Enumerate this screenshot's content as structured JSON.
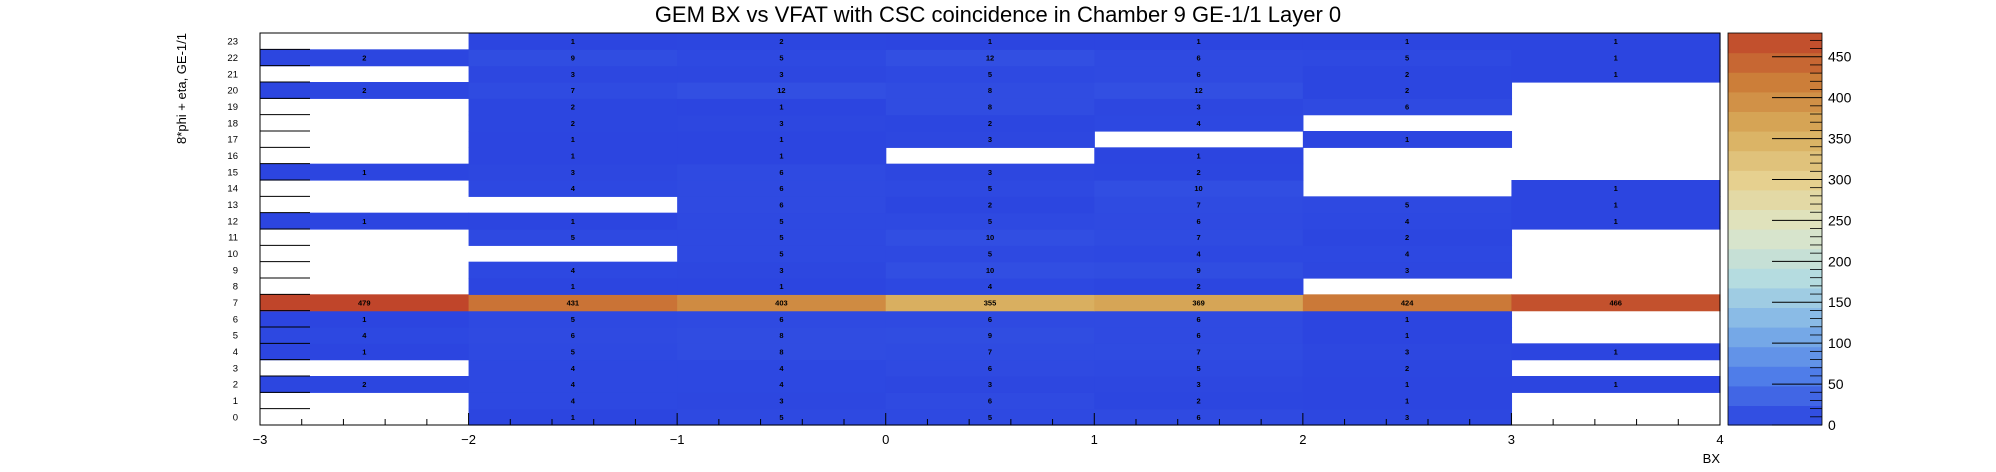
{
  "chart_data": {
    "type": "heatmap",
    "title": "GEM BX vs VFAT with CSC coincidence in Chamber 9 GE-1/1 Layer 0",
    "xlabel": "BX",
    "ylabel": "8*phi + eta, GE-1/1",
    "xlim": [
      -3,
      4
    ],
    "ylim": [
      0,
      24
    ],
    "x_ticks": [
      "−3",
      "−2",
      "−1",
      "0",
      "1",
      "2",
      "3",
      "4"
    ],
    "x_bins": [
      [
        -3,
        -2
      ],
      [
        -2,
        -1
      ],
      [
        -1,
        0
      ],
      [
        0,
        1
      ],
      [
        1,
        2
      ],
      [
        2,
        3
      ],
      [
        3,
        4
      ]
    ],
    "y_categories": [
      "0",
      "1",
      "2",
      "3",
      "4",
      "5",
      "6",
      "7",
      "8",
      "9",
      "10",
      "11",
      "12",
      "13",
      "14",
      "15",
      "16",
      "17",
      "18",
      "19",
      "20",
      "21",
      "22",
      "23"
    ],
    "zlim": [
      0,
      479
    ],
    "z_ticks": [
      "0",
      "50",
      "100",
      "150",
      "200",
      "250",
      "300",
      "350",
      "400",
      "450"
    ],
    "empty_color": "#ffffff",
    "palette_stops": [
      "#2b44e0",
      "#4f7de9",
      "#7fb3e7",
      "#b5dce0",
      "#dfe6c7",
      "#e6d08f",
      "#d8ad5c",
      "#cc7e39",
      "#c0452a"
    ],
    "cells": [
      [
        0,
        [
          null,
          1,
          5,
          5,
          6,
          3,
          null
        ]
      ],
      [
        1,
        [
          null,
          4,
          3,
          6,
          2,
          1,
          null
        ]
      ],
      [
        2,
        [
          2,
          4,
          4,
          3,
          3,
          1,
          1
        ]
      ],
      [
        3,
        [
          null,
          4,
          4,
          6,
          5,
          2,
          null
        ]
      ],
      [
        4,
        [
          1,
          5,
          8,
          7,
          7,
          3,
          1
        ]
      ],
      [
        5,
        [
          4,
          6,
          8,
          9,
          6,
          1,
          null
        ]
      ],
      [
        6,
        [
          1,
          5,
          6,
          6,
          6,
          1,
          null
        ]
      ],
      [
        7,
        [
          479,
          431,
          403,
          355,
          369,
          424,
          466
        ]
      ],
      [
        8,
        [
          null,
          1,
          1,
          4,
          2,
          null,
          null
        ]
      ],
      [
        9,
        [
          null,
          4,
          3,
          10,
          9,
          3,
          null
        ]
      ],
      [
        10,
        [
          null,
          null,
          5,
          5,
          4,
          4,
          null
        ]
      ],
      [
        11,
        [
          null,
          5,
          5,
          10,
          7,
          2,
          null
        ]
      ],
      [
        12,
        [
          1,
          1,
          5,
          5,
          6,
          4,
          1
        ]
      ],
      [
        13,
        [
          null,
          null,
          6,
          2,
          7,
          5,
          1
        ]
      ],
      [
        14,
        [
          null,
          4,
          6,
          5,
          10,
          null,
          1
        ]
      ],
      [
        15,
        [
          1,
          3,
          6,
          3,
          2,
          null,
          null
        ]
      ],
      [
        16,
        [
          null,
          1,
          1,
          null,
          1,
          null,
          null
        ]
      ],
      [
        17,
        [
          null,
          1,
          1,
          3,
          null,
          1,
          null
        ]
      ],
      [
        18,
        [
          null,
          2,
          3,
          2,
          4,
          null,
          null
        ]
      ],
      [
        19,
        [
          null,
          2,
          1,
          8,
          3,
          6,
          null
        ]
      ],
      [
        20,
        [
          2,
          7,
          12,
          8,
          12,
          2,
          null
        ]
      ],
      [
        21,
        [
          null,
          3,
          3,
          5,
          6,
          2,
          1
        ]
      ],
      [
        22,
        [
          2,
          9,
          5,
          12,
          6,
          5,
          1
        ]
      ],
      [
        23,
        [
          null,
          1,
          2,
          1,
          1,
          1,
          1
        ]
      ]
    ]
  }
}
